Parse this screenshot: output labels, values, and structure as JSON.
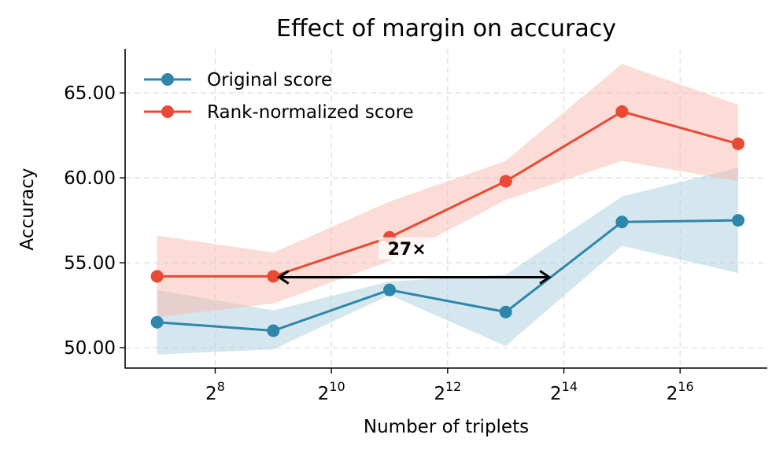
{
  "chart_data": {
    "type": "line",
    "title": "Effect of margin on accuracy",
    "xlabel": "Number of triplets",
    "ylabel": "Accuracy",
    "x_scale": "log2",
    "x": [
      7,
      9,
      11,
      13,
      15,
      17
    ],
    "xlim": [
      6.45,
      17.5
    ],
    "ylim": [
      48.8,
      67.6
    ],
    "x_ticks": [
      {
        "base": "2",
        "exp": "8",
        "value": 8
      },
      {
        "base": "2",
        "exp": "10",
        "value": 10
      },
      {
        "base": "2",
        "exp": "12",
        "value": 12
      },
      {
        "base": "2",
        "exp": "14",
        "value": 14
      },
      {
        "base": "2",
        "exp": "16",
        "value": 16
      }
    ],
    "y_ticks": [
      {
        "label": "50.00",
        "value": 50
      },
      {
        "label": "55.00",
        "value": 55
      },
      {
        "label": "60.00",
        "value": 60
      },
      {
        "label": "65.00",
        "value": 65
      }
    ],
    "grid": true,
    "legend_position": "top-left",
    "series": [
      {
        "name": "Original score",
        "color": "#2e86ab",
        "band_color": "#a9cfe0",
        "values": [
          51.5,
          51.0,
          53.4,
          52.1,
          57.4,
          57.5
        ],
        "lower": [
          49.6,
          49.9,
          53.1,
          50.1,
          56.0,
          54.4
        ],
        "upper": [
          53.4,
          52.2,
          53.9,
          54.3,
          58.9,
          60.6
        ]
      },
      {
        "name": "Rank-normalized score",
        "color": "#e84a35",
        "band_color": "#f7b9ae",
        "values": [
          54.2,
          54.2,
          56.5,
          59.8,
          63.9,
          62.0
        ],
        "lower": [
          51.8,
          52.6,
          55.1,
          58.7,
          61.0,
          59.8
        ],
        "upper": [
          56.6,
          55.6,
          58.6,
          61.0,
          66.7,
          64.3
        ]
      }
    ],
    "annotation": {
      "text": "27×",
      "x_start": 9.1,
      "x_end": 13.75,
      "y": 54.15,
      "text_x": 11.3,
      "text_y": 55.85
    }
  }
}
